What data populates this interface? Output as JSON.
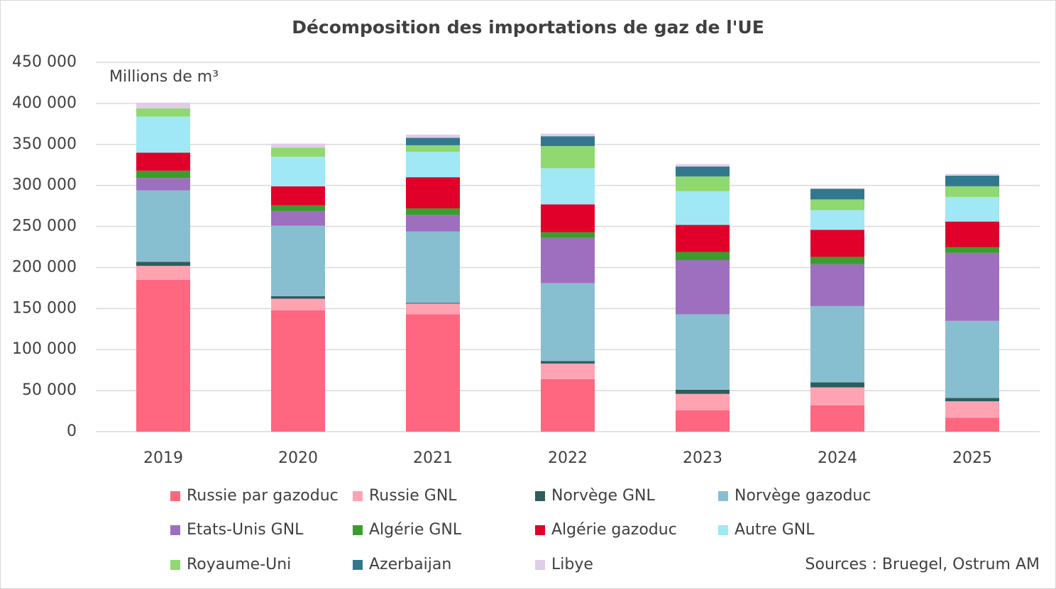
{
  "chart_data": {
    "type": "stacked_bar",
    "title": "Décomposition des importations de gaz de l'UE",
    "y_label": "Millions de m³",
    "source": "Sources : Bruegel, Ostrum AM",
    "categories": [
      "2019",
      "2020",
      "2021",
      "2022",
      "2023",
      "2024",
      "2025"
    ],
    "series": [
      {
        "name": "Russie par gazoduc",
        "color": "#ff6680",
        "values": [
          185000,
          148000,
          143000,
          64000,
          26000,
          32000,
          17000
        ]
      },
      {
        "name": "Russie GNL",
        "color": "#ffa3b3",
        "values": [
          17000,
          14000,
          13000,
          19000,
          20000,
          22000,
          20000
        ]
      },
      {
        "name": "Norvège GNL",
        "color": "#2f5c5c",
        "values": [
          5000,
          3000,
          1000,
          3000,
          5000,
          6000,
          4000
        ]
      },
      {
        "name": "Norvège gazoduc",
        "color": "#88bfd0",
        "values": [
          87000,
          86000,
          87000,
          95000,
          92000,
          93000,
          94000
        ]
      },
      {
        "name": "Etats-Unis GNL",
        "color": "#9e6fbf",
        "values": [
          15000,
          18000,
          20000,
          55000,
          66000,
          51000,
          83000
        ]
      },
      {
        "name": "Algérie GNL",
        "color": "#3a9e2c",
        "values": [
          9000,
          7000,
          8000,
          7000,
          10000,
          9000,
          7000
        ]
      },
      {
        "name": "Algérie gazoduc",
        "color": "#e0002a",
        "values": [
          22000,
          23000,
          38000,
          34000,
          33000,
          33000,
          31000
        ]
      },
      {
        "name": "Autre GNL",
        "color": "#a0e8f5",
        "values": [
          44000,
          36000,
          31000,
          44000,
          41000,
          24000,
          30000
        ]
      },
      {
        "name": "Royaume-Uni",
        "color": "#90d870",
        "values": [
          10000,
          11000,
          8000,
          27000,
          18000,
          13000,
          13000
        ]
      },
      {
        "name": "Azerbaijan",
        "color": "#31788f",
        "values": [
          0,
          0,
          9000,
          12000,
          12000,
          13000,
          13000
        ]
      },
      {
        "name": "Libye",
        "color": "#e0cde8",
        "values": [
          7000,
          5000,
          4000,
          3000,
          3000,
          0,
          2000
        ]
      }
    ],
    "ylim": [
      0,
      450000
    ],
    "yticks": [
      0,
      {
        "value": 50000,
        "label": "50 000"
      },
      {
        "value": 100000,
        "label": "100 000"
      },
      {
        "value": 150000,
        "label": "150 000"
      },
      {
        "value": 200000,
        "label": "200 000"
      },
      {
        "value": 250000,
        "label": "250 000"
      },
      {
        "value": 300000,
        "label": "300 000"
      },
      {
        "value": 350000,
        "label": "350 000"
      },
      {
        "value": 400000,
        "label": "400 000"
      },
      {
        "value": 450000,
        "label": "450 000"
      }
    ],
    "grid": true
  }
}
